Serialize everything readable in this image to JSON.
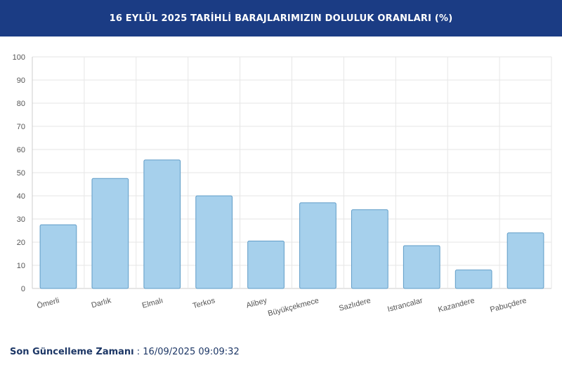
{
  "header": {
    "title": "16 EYLÜL 2025 TARİHLİ BARAJLARIMIZIN DOLULUK ORANLARI (%)"
  },
  "footer": {
    "label": "Son Güncelleme Zamanı",
    "separator": " : ",
    "value": "16/09/2025 09:09:32"
  },
  "chart_data": {
    "type": "bar",
    "title": "16 EYLÜL 2025 TARİHLİ BARAJLARIMIZIN DOLULUK ORANLARI (%)",
    "categories": [
      "Ömerli",
      "Darlık",
      "Elmalı",
      "Terkos",
      "Alibey",
      "Büyükçekmece",
      "Sazlıdere",
      "Istrancalar",
      "Kazandere",
      "Pabuçdere"
    ],
    "values": [
      27.5,
      47.5,
      55.5,
      40,
      20.5,
      37,
      34,
      18.5,
      8,
      24
    ],
    "ylim": [
      0,
      100
    ],
    "yticks": [
      0,
      10,
      20,
      30,
      40,
      50,
      60,
      70,
      80,
      90,
      100
    ],
    "grid": true,
    "legend": "none",
    "colors": {
      "bar_fill": "#a6d0ec",
      "bar_stroke": "#5f9cc7",
      "grid": "#e6e6e6",
      "axis": "#cccccc"
    }
  }
}
